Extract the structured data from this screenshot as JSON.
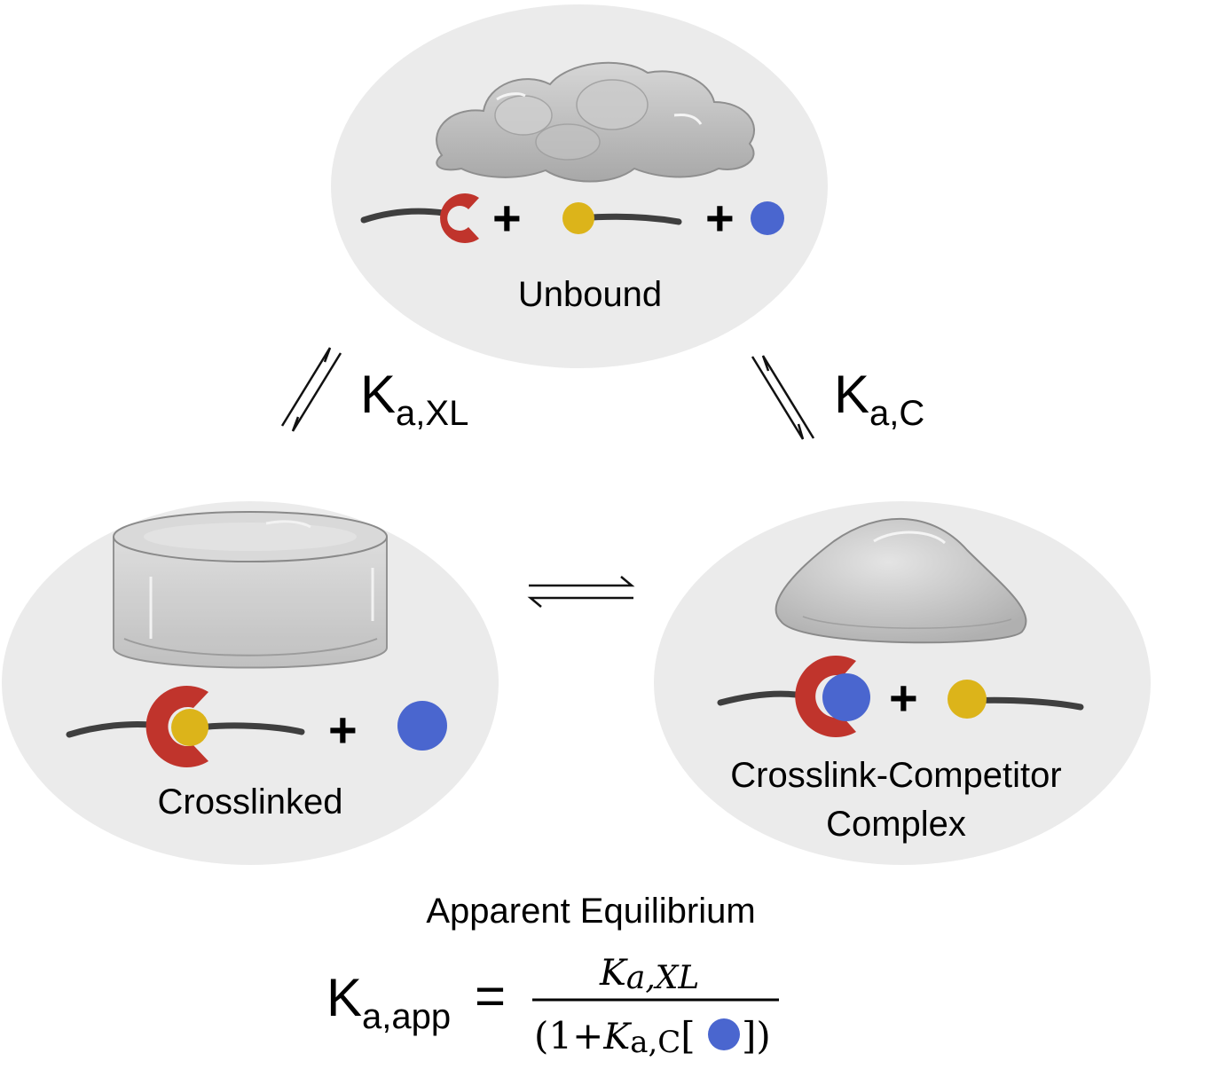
{
  "states": {
    "unbound": {
      "label": "Unbound"
    },
    "crosslinked": {
      "label": "Crosslinked"
    },
    "complex": {
      "label_line1": "Crosslink-Competitor",
      "label_line2": "Complex"
    }
  },
  "plus": "+",
  "constants": {
    "xl": {
      "base": "K",
      "sub": "a,XL"
    },
    "c": {
      "base": "K",
      "sub": "a,C"
    }
  },
  "equation": {
    "title": "Apparent Equilibrium",
    "lhs_base": "K",
    "lhs_sub": "a,app",
    "equals": "=",
    "num_base": "K",
    "num_sub": "a,XL",
    "den_open": "(1+",
    "den_base": "K",
    "den_sub": "a,C",
    "den_bracket_open": "[",
    "den_bracket_close": "])"
  },
  "colors": {
    "ellipse": "#ebebeb",
    "strand": "#3f3f3f",
    "receptor": "#c0342c",
    "ligand": "#dcb41a",
    "competitor": "#4a66cf"
  }
}
